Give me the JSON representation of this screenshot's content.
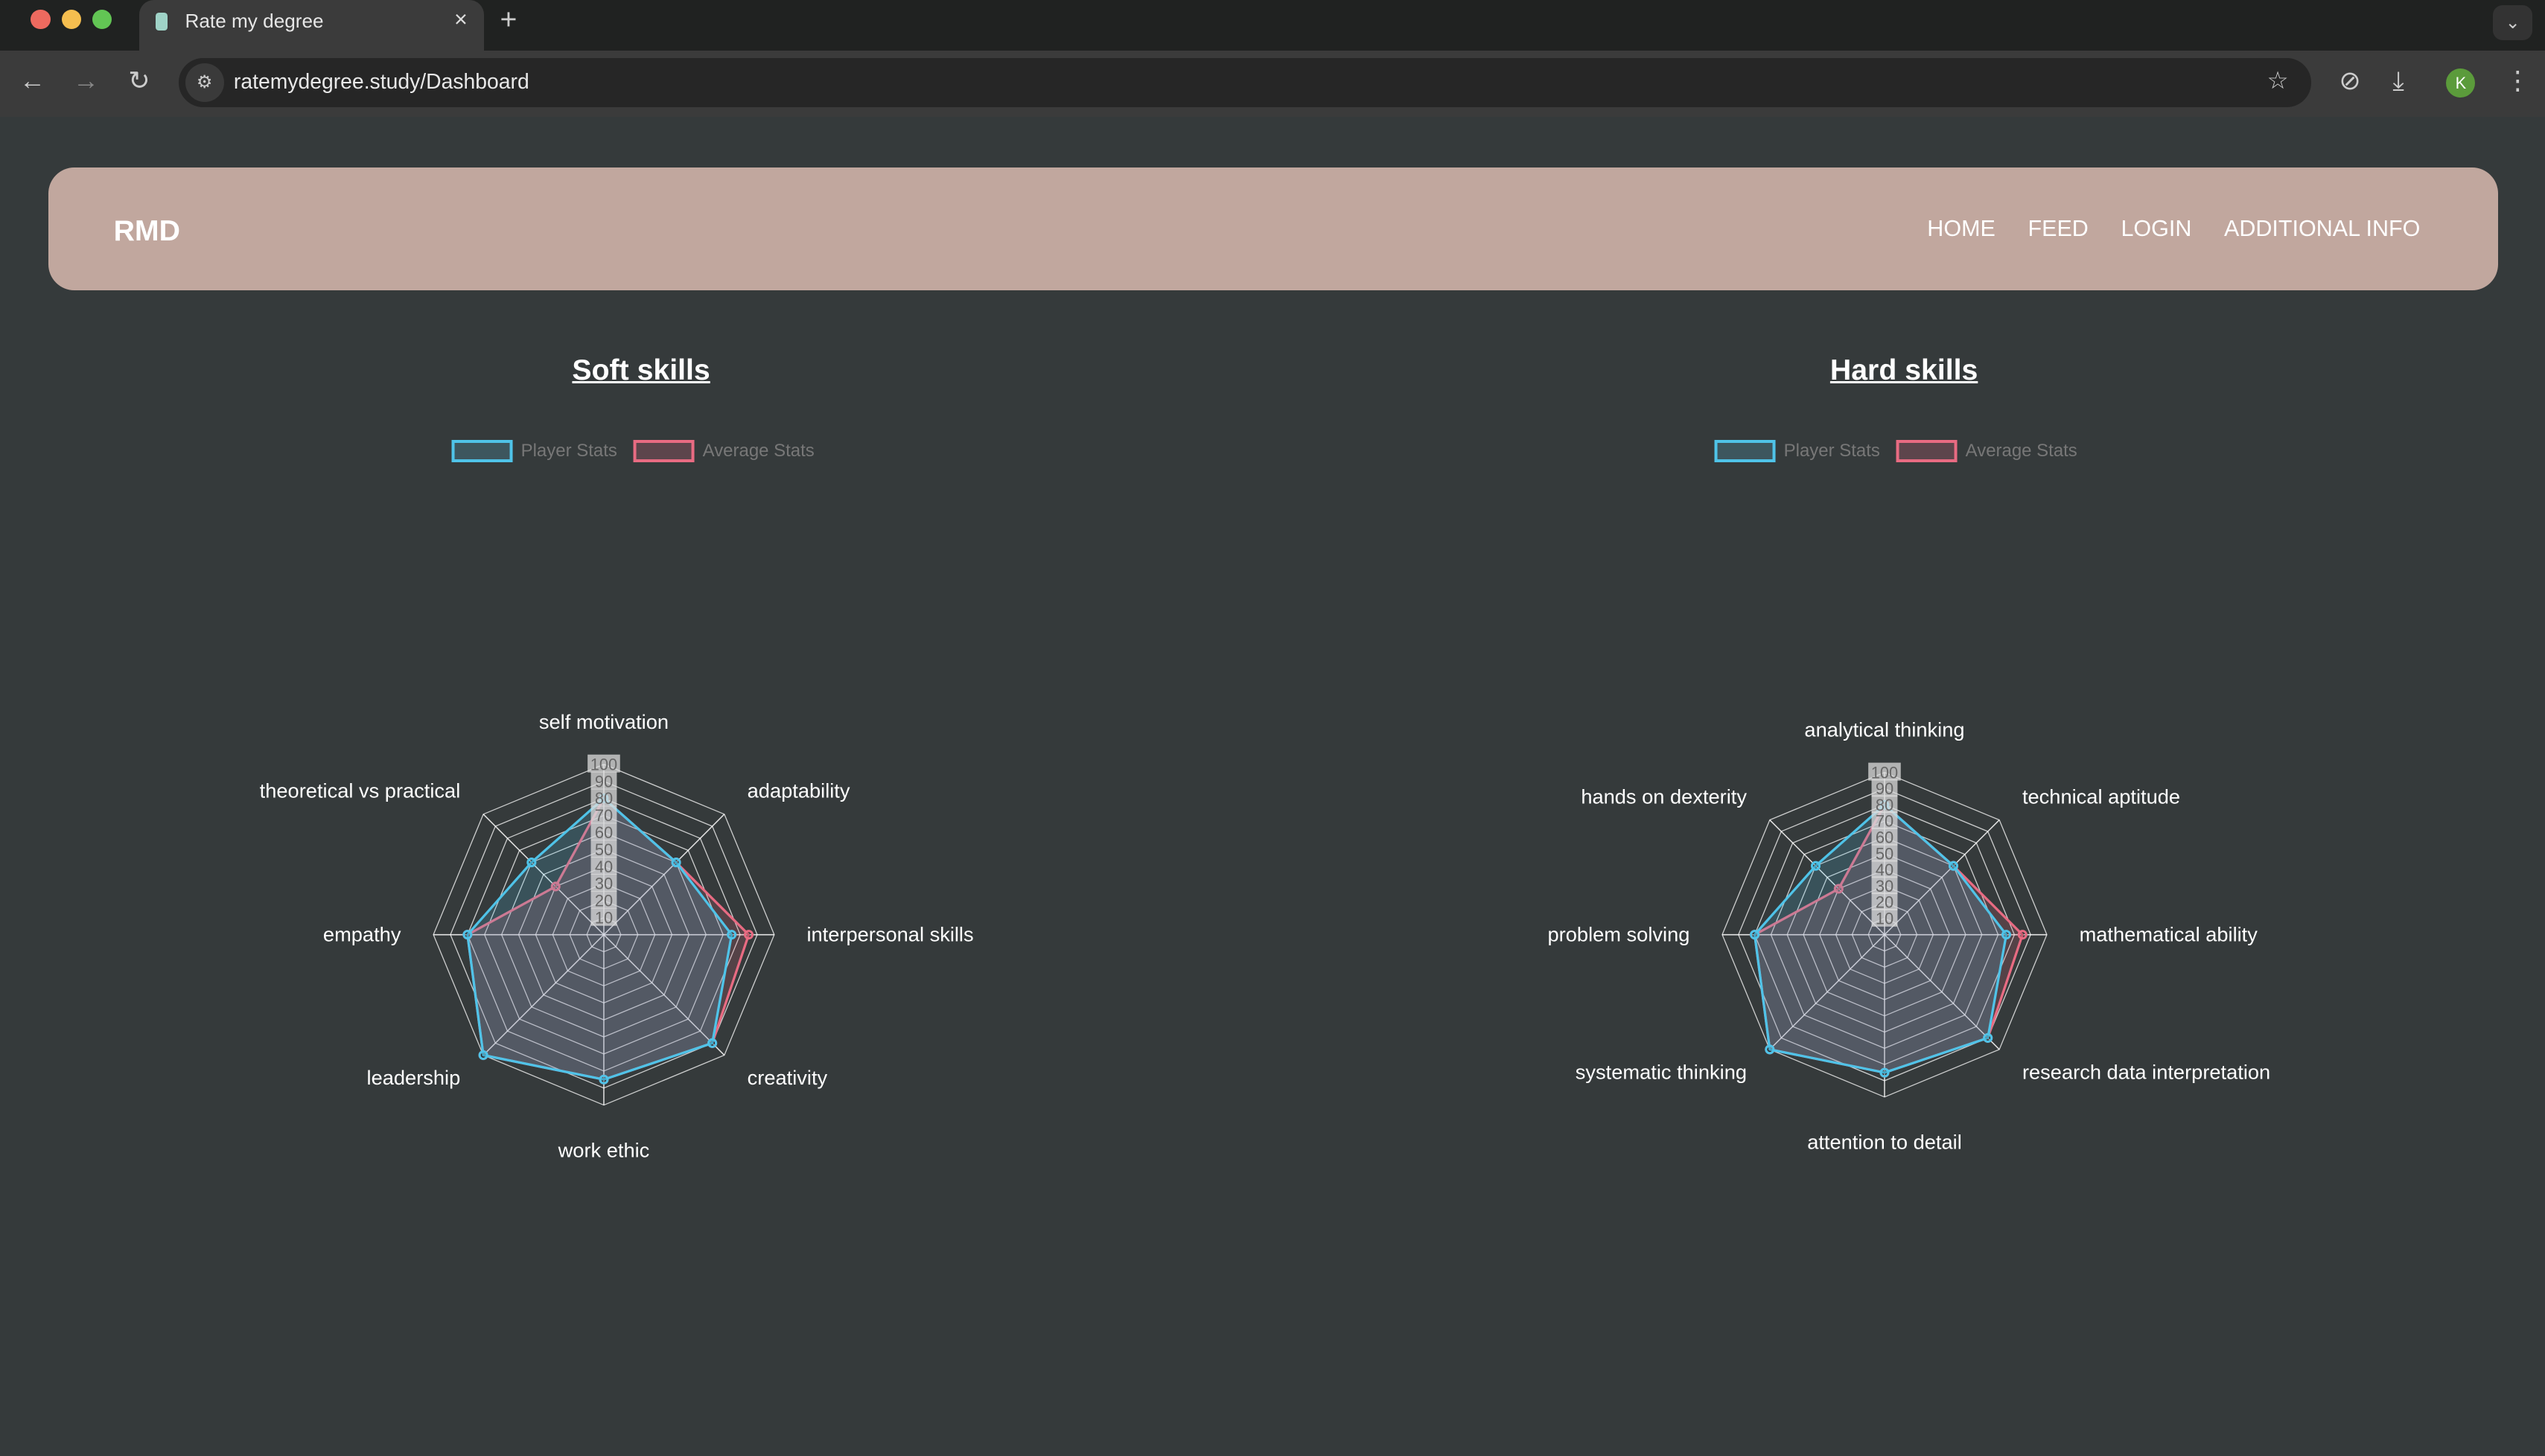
{
  "browser": {
    "tab_title": "Rate my degree",
    "url": "ratemydegree.study/Dashboard",
    "profile_initial": "K"
  },
  "navbar": {
    "brand": "RMD",
    "links": [
      "HOME",
      "FEED",
      "LOGIN",
      "ADDITIONAL INFO"
    ]
  },
  "colors": {
    "player": "#4fc3e8",
    "average": "#e86b82",
    "navbar": "#c1a79e",
    "background": "#353a3b"
  },
  "chart_data": [
    {
      "type": "radar",
      "title": "Soft skills",
      "rlim": [
        0,
        100
      ],
      "ticks": [
        10,
        20,
        30,
        40,
        50,
        60,
        70,
        80,
        90,
        100
      ],
      "legend": "top",
      "categories": [
        "self motivation",
        "adaptability",
        "interpersonal skills",
        "creativity",
        "work ethic",
        "leadership",
        "empathy",
        "theoretical vs practical"
      ],
      "series": [
        {
          "name": "Player Stats",
          "values": [
            80,
            60,
            75,
            90,
            85,
            100,
            80,
            60
          ]
        },
        {
          "name": "Average Stats",
          "values": [
            80,
            60,
            85,
            90,
            85,
            100,
            80,
            40
          ]
        }
      ]
    },
    {
      "type": "radar",
      "title": "Hard skills",
      "rlim": [
        0,
        100
      ],
      "ticks": [
        10,
        20,
        30,
        40,
        50,
        60,
        70,
        80,
        90,
        100
      ],
      "legend": "top",
      "categories": [
        "analytical thinking",
        "technical aptitude",
        "mathematical ability",
        "research data interpretation",
        "attention to detail",
        "systematic thinking",
        "problem solving",
        "hands on dexterity"
      ],
      "series": [
        {
          "name": "Player Stats",
          "values": [
            80,
            60,
            75,
            90,
            85,
            100,
            80,
            60
          ]
        },
        {
          "name": "Average Stats",
          "values": [
            80,
            60,
            85,
            90,
            85,
            100,
            80,
            40
          ]
        }
      ]
    }
  ]
}
